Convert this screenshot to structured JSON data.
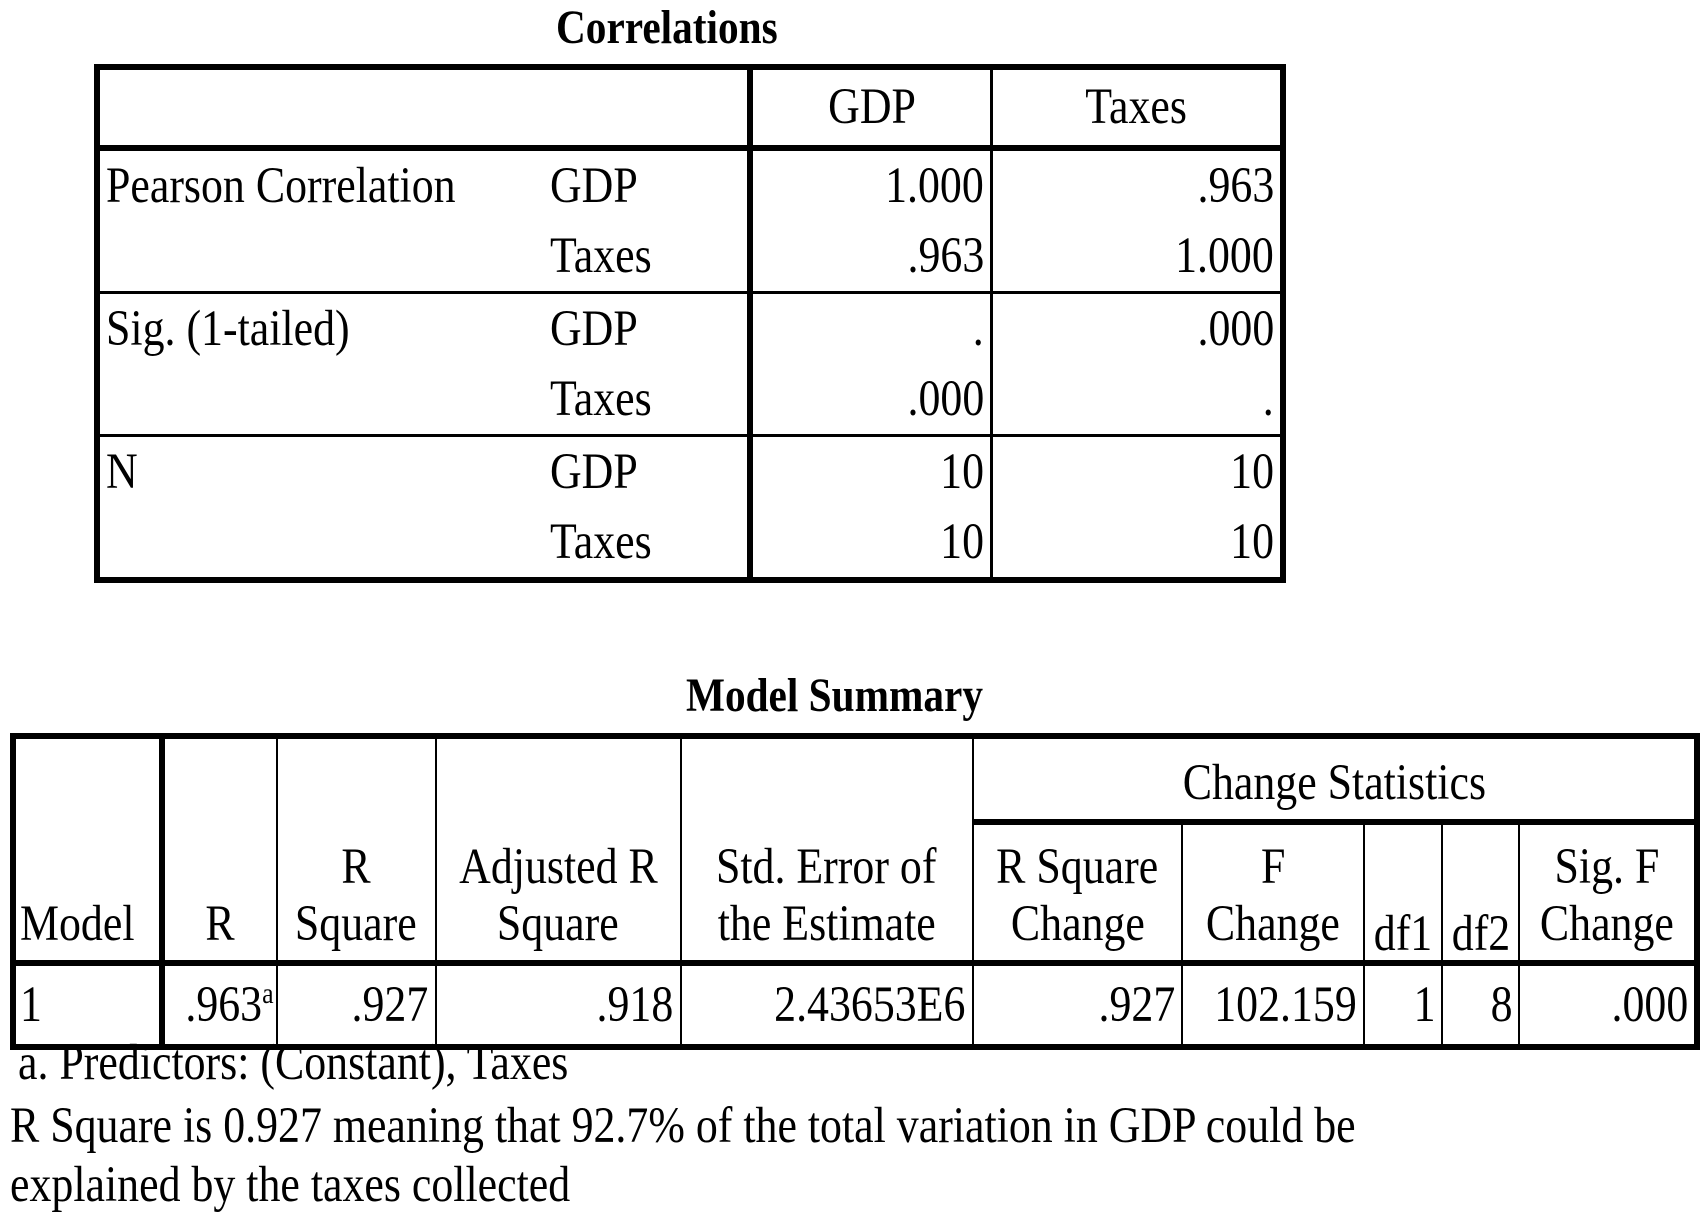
{
  "correlations": {
    "title": "Correlations",
    "columns": [
      "GDP",
      "Taxes"
    ],
    "groups": [
      {
        "label": "Pearson Correlation",
        "rows": [
          {
            "var": "GDP",
            "values": [
              "1.000",
              ".963"
            ]
          },
          {
            "var": "Taxes",
            "values": [
              ".963",
              "1.000"
            ]
          }
        ]
      },
      {
        "label": "Sig. (1-tailed)",
        "rows": [
          {
            "var": "GDP",
            "values": [
              ".",
              ".000"
            ]
          },
          {
            "var": "Taxes",
            "values": [
              ".000",
              "."
            ]
          }
        ]
      },
      {
        "label": "N",
        "rows": [
          {
            "var": "GDP",
            "values": [
              "10",
              "10"
            ]
          },
          {
            "var": "Taxes",
            "values": [
              "10",
              "10"
            ]
          }
        ]
      }
    ]
  },
  "model_summary": {
    "title": "Model Summary",
    "change_statistics": "Change Statistics",
    "headers": {
      "model": "Model",
      "r": "R",
      "r_square_1": "R",
      "r_square_2": "Square",
      "adj_1": "Adjusted R",
      "adj_2": "Square",
      "std_1": "Std. Error of",
      "std_2": "the Estimate",
      "rsc_1": "R Square",
      "rsc_2": "Change",
      "fc_1": "F",
      "fc_2": "Change",
      "df1": "df1",
      "df2": "df2",
      "sig_1": "Sig. F",
      "sig_2": "Change"
    },
    "row": {
      "model": "1",
      "r": ".963",
      "r_sup": "a",
      "r_square": ".927",
      "adjusted_r_square": ".918",
      "std_error": "2.43653E6",
      "r_square_change": ".927",
      "f_change": "102.159",
      "df1": "1",
      "df2": "8",
      "sig_f_change": ".000"
    },
    "footnote": "a. Predictors: (Constant), Taxes"
  },
  "note": {
    "line1": "R Square is 0.927 meaning that 92.7%  of the total variation in GDP could be",
    "line2": "explained by the taxes collected"
  }
}
